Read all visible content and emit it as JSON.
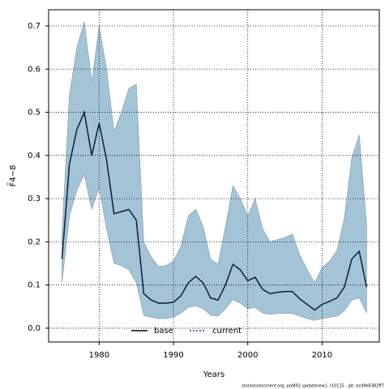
{
  "chart_data": {
    "type": "line",
    "xlabel": "Years",
    "ylabel": "F̄4−8",
    "footnote": "stockassessment.org, pol802 updatenew1, r10115 , git: ecd9e6382ff7",
    "x": [
      1975,
      1976,
      1977,
      1978,
      1979,
      1980,
      1981,
      1982,
      1983,
      1984,
      1985,
      1986,
      1987,
      1988,
      1989,
      1990,
      1991,
      1992,
      1993,
      1994,
      1995,
      1996,
      1997,
      1998,
      1999,
      2000,
      2001,
      2002,
      2003,
      2004,
      2005,
      2006,
      2007,
      2008,
      2009,
      2010,
      2011,
      2012,
      2013,
      2014,
      2015,
      2016
    ],
    "series": [
      {
        "name": "base",
        "color": "#000000",
        "style": "solid",
        "values": [
          0.16,
          0.38,
          0.46,
          0.5,
          0.4,
          0.475,
          0.39,
          0.265,
          0.27,
          0.275,
          0.25,
          0.08,
          0.065,
          0.058,
          0.058,
          0.06,
          0.075,
          0.105,
          0.12,
          0.105,
          0.07,
          0.065,
          0.1,
          0.148,
          0.135,
          0.11,
          0.118,
          0.09,
          0.08,
          0.083,
          0.085,
          0.085,
          0.068,
          0.055,
          0.042,
          0.055,
          0.062,
          0.07,
          0.095,
          0.16,
          0.178,
          0.095
        ]
      },
      {
        "name": "current",
        "color": "#1f3f7a",
        "style": "dotted",
        "values": [
          0.16,
          0.38,
          0.46,
          0.5,
          0.4,
          0.475,
          0.39,
          0.265,
          0.27,
          0.275,
          0.25,
          0.08,
          0.065,
          0.058,
          0.058,
          0.06,
          0.075,
          0.105,
          0.12,
          0.105,
          0.07,
          0.065,
          0.1,
          0.148,
          0.135,
          0.11,
          0.118,
          0.09,
          0.08,
          0.083,
          0.085,
          0.085,
          0.068,
          0.055,
          0.042,
          0.055,
          0.062,
          0.07,
          0.095,
          0.16,
          0.178,
          0.095
        ]
      }
    ],
    "band": {
      "color": "#a3c4d6",
      "lower": [
        0.105,
        0.26,
        0.32,
        0.355,
        0.275,
        0.325,
        0.23,
        0.15,
        0.145,
        0.135,
        0.105,
        0.03,
        0.025,
        0.022,
        0.022,
        0.025,
        0.035,
        0.048,
        0.052,
        0.045,
        0.03,
        0.028,
        0.045,
        0.066,
        0.058,
        0.045,
        0.048,
        0.035,
        0.032,
        0.034,
        0.034,
        0.034,
        0.028,
        0.022,
        0.018,
        0.022,
        0.025,
        0.028,
        0.04,
        0.065,
        0.07,
        0.035
      ],
      "upper": [
        0.22,
        0.54,
        0.65,
        0.71,
        0.57,
        0.7,
        0.6,
        0.455,
        0.5,
        0.555,
        0.565,
        0.2,
        0.165,
        0.143,
        0.145,
        0.155,
        0.19,
        0.26,
        0.275,
        0.235,
        0.16,
        0.148,
        0.235,
        0.33,
        0.3,
        0.26,
        0.3,
        0.23,
        0.2,
        0.205,
        0.21,
        0.218,
        0.17,
        0.135,
        0.105,
        0.14,
        0.155,
        0.18,
        0.255,
        0.395,
        0.448,
        0.24
      ]
    },
    "xlim": [
      1973.2,
      2017.7
    ],
    "xticks": [
      1980,
      1990,
      2000,
      2010
    ],
    "ylim": [
      -0.032,
      0.7375
    ],
    "yticks": [
      {
        "value": 0,
        "label": "0.0"
      },
      0.1,
      0.2,
      0.3,
      0.4,
      0.5,
      0.6,
      0.7
    ],
    "grid": true,
    "legend": "bottom"
  }
}
